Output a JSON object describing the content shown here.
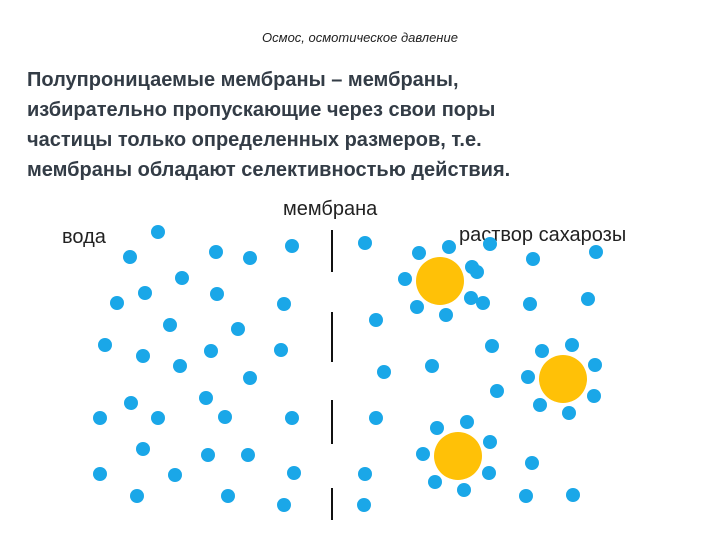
{
  "slide": {
    "header": "Осмос, осмотическое давление",
    "definition_lines": [
      "Полупроницаемые мембраны – мембраны,",
      "избирательно  пропускающие через свои поры",
      "частицы только определенных размеров, т.е.",
      "мембраны обладают селективностью действия."
    ]
  },
  "diagram": {
    "label_water": "вода",
    "label_membrane": "мембрана",
    "label_solution": "раствор сахарозы",
    "colors": {
      "water_molecule": "#1aa7e8",
      "sucrose_molecule": "#ffc107",
      "membrane_line": "#111111"
    }
  }
}
